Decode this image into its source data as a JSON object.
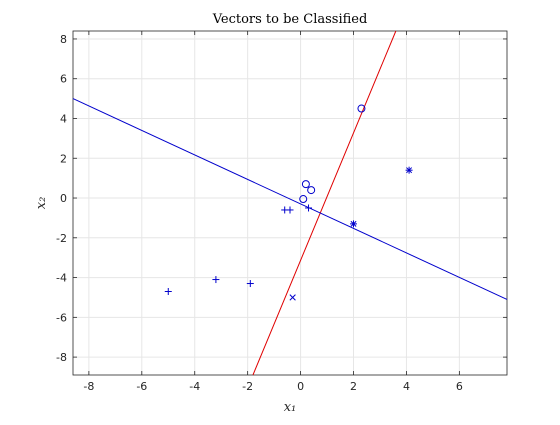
{
  "chart_data": {
    "type": "scatter",
    "title": "Vectors to be Classified",
    "xlabel": "x₁",
    "ylabel": "x₂",
    "xlim": [
      -8.6,
      7.8
    ],
    "ylim": [
      -8.9,
      8.4
    ],
    "xticks": [
      -8,
      -6,
      -4,
      -2,
      0,
      2,
      4,
      6
    ],
    "yticks": [
      -8,
      -6,
      -4,
      -2,
      0,
      2,
      4,
      6,
      8
    ],
    "grid": true,
    "color": "#0000cc",
    "line_colors": {
      "red": "#e00000",
      "blue": "#0000cc"
    },
    "series": [
      {
        "marker": "plus",
        "points": [
          [
            -5.0,
            -4.7
          ],
          [
            -3.2,
            -4.1
          ],
          [
            -1.9,
            -4.3
          ],
          [
            -0.6,
            -0.6
          ],
          [
            -0.4,
            -0.6
          ],
          [
            0.3,
            -0.5
          ]
        ]
      },
      {
        "marker": "circle",
        "points": [
          [
            0.2,
            0.7
          ],
          [
            0.4,
            0.4
          ],
          [
            0.1,
            -0.05
          ],
          [
            2.3,
            4.5
          ]
        ]
      },
      {
        "marker": "x",
        "points": [
          [
            -0.3,
            -5.0
          ]
        ]
      },
      {
        "marker": "asterisk",
        "points": [
          [
            2.0,
            -1.3
          ],
          [
            4.1,
            1.4
          ]
        ]
      }
    ],
    "lines": [
      {
        "color": "red",
        "points": [
          [
            -1.8,
            -8.9
          ],
          [
            3.6,
            8.4
          ]
        ]
      },
      {
        "color": "blue",
        "points": [
          [
            -8.6,
            5.0
          ],
          [
            7.8,
            -5.1
          ]
        ]
      }
    ]
  }
}
